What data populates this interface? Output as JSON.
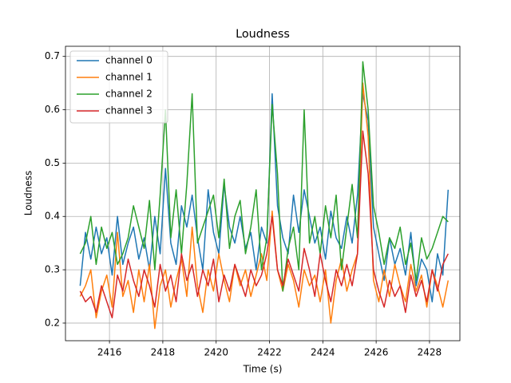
{
  "chart_data": {
    "type": "line",
    "title": "Loudness",
    "xlabel": "Time (s)",
    "ylabel": "Loudness",
    "x": [
      2414.9,
      2415.1,
      2415.3,
      2415.5,
      2415.7,
      2415.9,
      2416.1,
      2416.3,
      2416.5,
      2416.7,
      2416.9,
      2417.1,
      2417.3,
      2417.5,
      2417.7,
      2417.9,
      2418.1,
      2418.3,
      2418.5,
      2418.7,
      2418.9,
      2419.1,
      2419.3,
      2419.5,
      2419.7,
      2419.9,
      2420.1,
      2420.3,
      2420.5,
      2420.7,
      2420.9,
      2421.1,
      2421.3,
      2421.5,
      2421.7,
      2421.9,
      2422.1,
      2422.3,
      2422.5,
      2422.7,
      2422.9,
      2423.1,
      2423.3,
      2423.5,
      2423.7,
      2423.9,
      2424.1,
      2424.3,
      2424.5,
      2424.7,
      2424.9,
      2425.1,
      2425.3,
      2425.5,
      2425.7,
      2425.9,
      2426.1,
      2426.3,
      2426.5,
      2426.7,
      2426.9,
      2427.1,
      2427.3,
      2427.5,
      2427.7,
      2427.9,
      2428.1,
      2428.3,
      2428.5,
      2428.7
    ],
    "series": [
      {
        "name": "channel 0",
        "color": "#1f77b4",
        "values": [
          0.27,
          0.37,
          0.32,
          0.38,
          0.33,
          0.36,
          0.29,
          0.4,
          0.31,
          0.35,
          0.38,
          0.32,
          0.36,
          0.3,
          0.4,
          0.33,
          0.49,
          0.35,
          0.31,
          0.42,
          0.38,
          0.44,
          0.36,
          0.3,
          0.45,
          0.37,
          0.33,
          0.46,
          0.38,
          0.35,
          0.4,
          0.34,
          0.37,
          0.3,
          0.38,
          0.35,
          0.63,
          0.42,
          0.36,
          0.33,
          0.44,
          0.37,
          0.45,
          0.4,
          0.35,
          0.38,
          0.32,
          0.41,
          0.36,
          0.34,
          0.4,
          0.35,
          0.44,
          0.63,
          0.58,
          0.38,
          0.33,
          0.28,
          0.36,
          0.31,
          0.34,
          0.29,
          0.37,
          0.27,
          0.32,
          0.3,
          0.24,
          0.33,
          0.29,
          0.45
        ]
      },
      {
        "name": "channel 1",
        "color": "#ff7f0e",
        "values": [
          0.25,
          0.27,
          0.3,
          0.21,
          0.26,
          0.29,
          0.23,
          0.37,
          0.25,
          0.28,
          0.22,
          0.3,
          0.24,
          0.31,
          0.19,
          0.27,
          0.3,
          0.23,
          0.28,
          0.32,
          0.25,
          0.38,
          0.27,
          0.22,
          0.3,
          0.26,
          0.33,
          0.28,
          0.24,
          0.31,
          0.27,
          0.3,
          0.25,
          0.29,
          0.33,
          0.28,
          0.41,
          0.3,
          0.26,
          0.31,
          0.28,
          0.23,
          0.3,
          0.27,
          0.29,
          0.24,
          0.3,
          0.2,
          0.28,
          0.32,
          0.26,
          0.3,
          0.33,
          0.65,
          0.55,
          0.28,
          0.24,
          0.3,
          0.25,
          0.31,
          0.27,
          0.24,
          0.31,
          0.26,
          0.29,
          0.23,
          0.3,
          0.27,
          0.23,
          0.28
        ]
      },
      {
        "name": "channel 2",
        "color": "#2ca02c",
        "values": [
          0.33,
          0.35,
          0.4,
          0.31,
          0.38,
          0.34,
          0.37,
          0.31,
          0.33,
          0.36,
          0.42,
          0.38,
          0.34,
          0.43,
          0.3,
          0.44,
          0.6,
          0.36,
          0.45,
          0.33,
          0.46,
          0.63,
          0.35,
          0.38,
          0.41,
          0.44,
          0.36,
          0.47,
          0.34,
          0.4,
          0.43,
          0.33,
          0.38,
          0.45,
          0.3,
          0.36,
          0.61,
          0.48,
          0.26,
          0.34,
          0.38,
          0.3,
          0.6,
          0.35,
          0.4,
          0.33,
          0.42,
          0.36,
          0.44,
          0.3,
          0.38,
          0.46,
          0.36,
          0.69,
          0.6,
          0.42,
          0.37,
          0.31,
          0.36,
          0.34,
          0.38,
          0.31,
          0.35,
          0.28,
          0.36,
          0.32,
          0.34,
          0.37,
          0.4,
          0.39
        ]
      },
      {
        "name": "channel 3",
        "color": "#d62728",
        "values": [
          0.26,
          0.24,
          0.25,
          0.22,
          0.27,
          0.24,
          0.21,
          0.29,
          0.26,
          0.32,
          0.28,
          0.25,
          0.3,
          0.27,
          0.23,
          0.31,
          0.26,
          0.29,
          0.24,
          0.33,
          0.28,
          0.31,
          0.25,
          0.3,
          0.27,
          0.32,
          0.24,
          0.29,
          0.26,
          0.31,
          0.28,
          0.25,
          0.3,
          0.27,
          0.29,
          0.33,
          0.4,
          0.3,
          0.27,
          0.32,
          0.29,
          0.26,
          0.34,
          0.3,
          0.25,
          0.33,
          0.28,
          0.24,
          0.3,
          0.27,
          0.31,
          0.27,
          0.33,
          0.56,
          0.48,
          0.3,
          0.26,
          0.23,
          0.28,
          0.25,
          0.27,
          0.22,
          0.29,
          0.25,
          0.28,
          0.24,
          0.3,
          0.26,
          0.31,
          0.33
        ]
      }
    ],
    "xlim": [
      2414.35,
      2429.14
    ],
    "xticks": [
      2416,
      2418,
      2420,
      2422,
      2424,
      2426,
      2428
    ],
    "ylim": [
      0.167,
      0.719
    ],
    "yticks": [
      0.2,
      0.3,
      0.4,
      0.5,
      0.6,
      0.7
    ],
    "grid": true,
    "legend": "upper left"
  }
}
